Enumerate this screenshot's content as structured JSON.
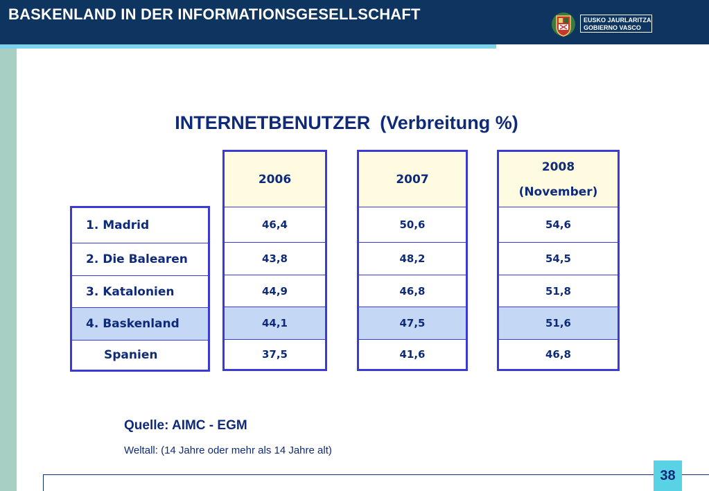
{
  "header": {
    "title": "BASKENLAND IN DER INFORMATIONSGESELLSCHAFT",
    "logo_line1": "EUSKO JAURLARITZA",
    "logo_line2": "GOBIERNO VASCO"
  },
  "main": {
    "title": "INTERNETBENUTZER",
    "subtitle": "(Verbreitung %)"
  },
  "table": {
    "regions": [
      "1.  Madrid",
      "2. Die Balearen",
      "3.  Katalonien",
      "4.  Baskenland",
      "Spanien"
    ],
    "years": [
      {
        "line1": "2006",
        "line2": "",
        "values": [
          "46,4",
          "43,8",
          "44,9",
          "44,1",
          "37,5"
        ]
      },
      {
        "line1": "2007",
        "line2": "",
        "values": [
          "50,6",
          "48,2",
          "46,8",
          "47,5",
          "41,6"
        ]
      },
      {
        "line1": "2008",
        "line2": "(November)",
        "values": [
          "54,6",
          "54,5",
          "51,8",
          "51,6",
          "46,8"
        ]
      }
    ],
    "highlight_color": "#c4d8f6",
    "header_color": "#fffbe0",
    "border_color": "#3a3ad8"
  },
  "footer": {
    "source": "Quelle: AIMC - EGM",
    "note": "Weltall: (14 Jahre oder mehr als 14 Jahre alt)",
    "page": "38"
  }
}
